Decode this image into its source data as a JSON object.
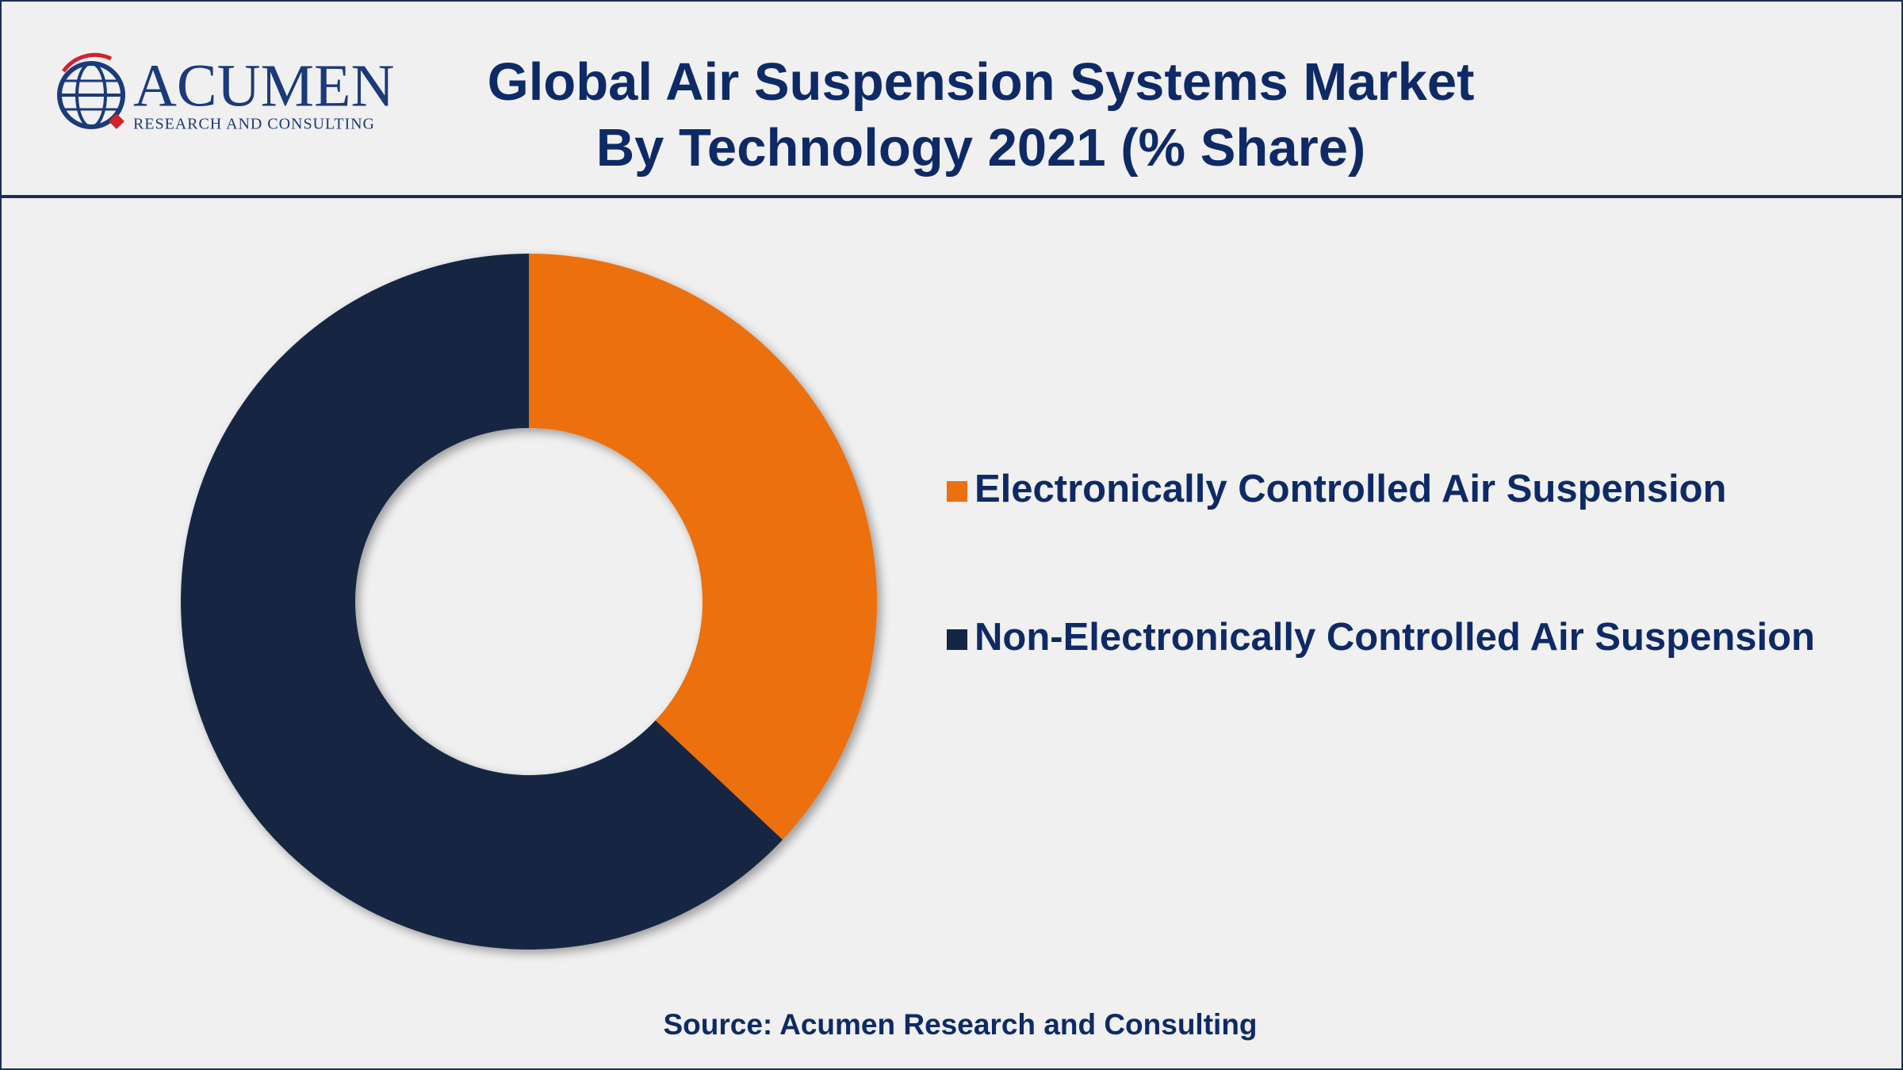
{
  "logo": {
    "name": "ACUMEN",
    "tagline": "RESEARCH AND CONSULTING"
  },
  "chart_data": {
    "type": "donut",
    "title": "Global Air Suspension Systems Market By Technology 2021 (% Share)",
    "categories": [
      "Electronically Controlled Air Suspension",
      "Non-Electronically Controlled Air Suspension"
    ],
    "values": [
      37,
      63
    ],
    "colors": [
      "#ec700f",
      "#132642"
    ],
    "source": "Source: Acumen Research and Consulting"
  }
}
